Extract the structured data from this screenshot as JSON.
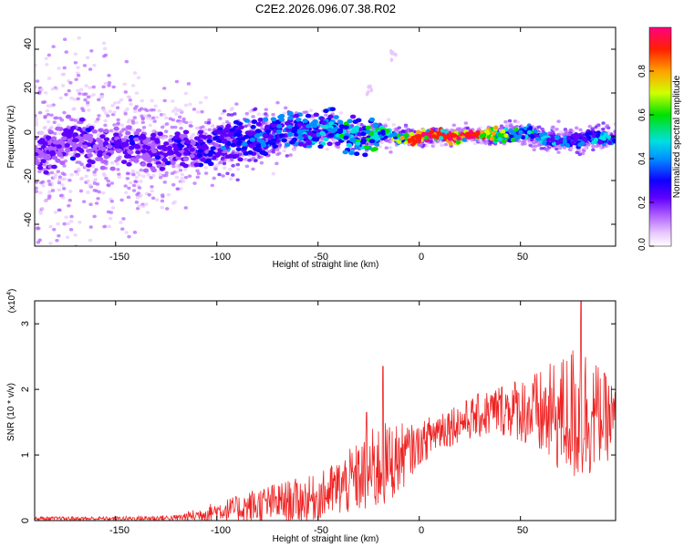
{
  "title": "C2E2.2026.096.07.38.R02",
  "chart_data": [
    {
      "type": "heatmap",
      "title": "C2E2.2026.096.07.38.R02",
      "xlabel": "Height of straight line (km)",
      "ylabel": "Frequency (Hz)",
      "xlim": [
        -190,
        97
      ],
      "ylim": [
        -50,
        50
      ],
      "xticks": [
        "-150",
        "-100",
        "-50",
        "0",
        "50"
      ],
      "yticks": [
        "-40",
        "-20",
        "0",
        "20",
        "40"
      ],
      "colorbar": {
        "label": "Normalized spectral amplitude",
        "range": [
          0,
          1
        ],
        "ticks": [
          "0.0",
          "0.2",
          "0.4",
          "0.6",
          "0.8"
        ],
        "colors": [
          "#ffffff",
          "#e8c8ff",
          "#b060ff",
          "#6000ff",
          "#1000ff",
          "#0090ff",
          "#00e0e0",
          "#00e000",
          "#d0ff00",
          "#ffa000",
          "#ff2000",
          "#ff0080"
        ]
      },
      "ridge": {
        "x": [
          -190,
          -170,
          -150,
          -130,
          -110,
          -90,
          -70,
          -50,
          -40,
          -30,
          -20,
          -10,
          0,
          10,
          20,
          30,
          40,
          50,
          60,
          70,
          80,
          90,
          97
        ],
        "y": [
          -5,
          -3,
          -4,
          -6,
          -6,
          -2,
          1,
          4,
          3,
          0,
          1,
          0,
          0,
          0,
          1,
          0,
          1,
          2,
          -1,
          -1,
          -2,
          0,
          0
        ],
        "amplitude": [
          0.25,
          0.3,
          0.3,
          0.3,
          0.35,
          0.4,
          0.45,
          0.5,
          0.55,
          0.6,
          0.6,
          0.75,
          0.95,
          0.9,
          0.95,
          0.95,
          0.7,
          0.6,
          0.55,
          0.5,
          0.45,
          0.5,
          0.5
        ]
      },
      "ridge_spread": {
        "x": [
          -190,
          -170,
          -150,
          -130,
          -110,
          -90,
          -70,
          -50,
          -30,
          -10,
          10,
          30,
          50,
          70,
          97
        ],
        "spread": [
          50,
          50,
          45,
          30,
          22,
          15,
          12,
          8,
          7,
          5,
          4,
          4,
          5,
          6,
          6
        ]
      },
      "annotations": [
        {
          "x": -25,
          "y": 22
        },
        {
          "x": -13,
          "y": 39
        }
      ]
    },
    {
      "type": "line",
      "xlabel": "Height of straight line (km)",
      "ylabel": "SNR (10 * v/v)",
      "scale_label": "(x10",
      "scale_exponent": "4",
      "scale_close": ")",
      "xlim": [
        -190,
        97
      ],
      "ylim": [
        0,
        3.35
      ],
      "xticks": [
        "-150",
        "-100",
        "-50",
        "0",
        "50"
      ],
      "yticks": [
        "0",
        "1",
        "2",
        "3"
      ],
      "color": "#ee2222",
      "envelope": {
        "x": [
          -190,
          -150,
          -120,
          -110,
          -100,
          -90,
          -80,
          -70,
          -60,
          -50,
          -40,
          -30,
          -20,
          -10,
          0,
          10,
          20,
          30,
          40,
          50,
          60,
          70,
          80,
          90,
          97
        ],
        "mean": [
          0.03,
          0.03,
          0.04,
          0.08,
          0.15,
          0.18,
          0.22,
          0.28,
          0.3,
          0.35,
          0.5,
          0.65,
          0.8,
          0.95,
          1.15,
          1.4,
          1.5,
          1.6,
          1.7,
          1.7,
          1.6,
          1.6,
          1.65,
          1.6,
          1.5
        ],
        "amplitude": [
          0.03,
          0.03,
          0.05,
          0.1,
          0.15,
          0.2,
          0.3,
          0.3,
          0.35,
          0.35,
          0.45,
          0.55,
          0.7,
          0.55,
          0.3,
          0.35,
          0.3,
          0.35,
          0.4,
          0.5,
          0.7,
          0.9,
          1.2,
          0.7,
          0.6
        ]
      },
      "peaks": [
        {
          "x": -26,
          "y": 1.65
        },
        {
          "x": -18,
          "y": 2.35
        },
        {
          "x": 80,
          "y": 3.35
        }
      ]
    }
  ]
}
